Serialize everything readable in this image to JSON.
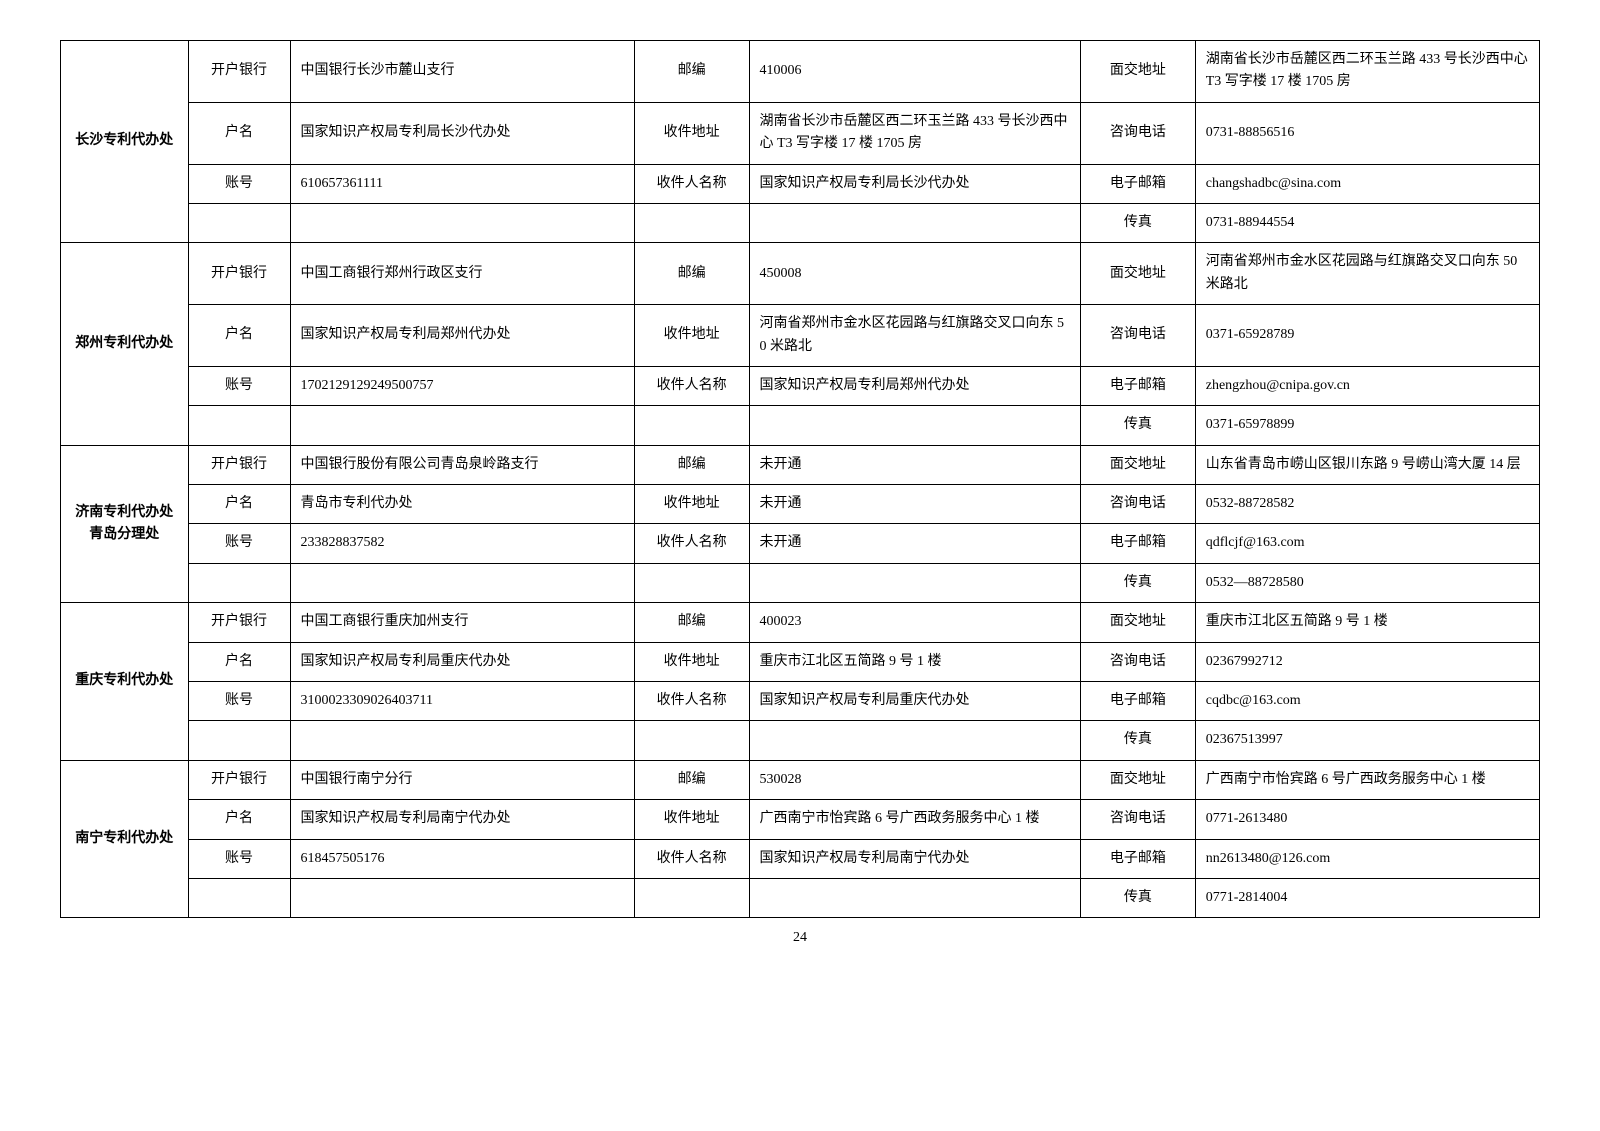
{
  "page_number": "24",
  "labels": {
    "bank": "开户银行",
    "accountName": "户名",
    "accountNo": "账号",
    "postcode": "邮编",
    "recvAddr": "收件地址",
    "recvName": "收件人名称",
    "visitAddr": "面交地址",
    "phone": "咨询电话",
    "email": "电子邮箱",
    "fax": "传真"
  },
  "offices": [
    {
      "name": "长沙专利代办处",
      "bank": "中国银行长沙市麓山支行",
      "postcode": "410006",
      "visitAddr": "湖南省长沙市岳麓区西二环玉兰路 433 号长沙西中心 T3 写字楼 17 楼 1705 房",
      "accountName": "国家知识产权局专利局长沙代办处",
      "recvAddr": "湖南省长沙市岳麓区西二环玉兰路 433 号长沙西中心 T3 写字楼 17 楼 1705 房",
      "phone": "0731-88856516",
      "accountNo": "610657361111",
      "recvName": "国家知识产权局专利局长沙代办处",
      "email": "changshadbc@sina.com",
      "fax": "0731-88944554"
    },
    {
      "name": "郑州专利代办处",
      "bank": "中国工商银行郑州行政区支行",
      "postcode": "450008",
      "visitAddr": "河南省郑州市金水区花园路与红旗路交叉口向东 50 米路北",
      "accountName": "国家知识产权局专利局郑州代办处",
      "recvAddr": "河南省郑州市金水区花园路与红旗路交叉口向东 50 米路北",
      "phone": "0371-65928789",
      "accountNo": "1702129129249500757",
      "recvName": "国家知识产权局专利局郑州代办处",
      "email": "zhengzhou@cnipa.gov.cn",
      "fax": "0371-65978899"
    },
    {
      "name": "济南专利代办处青岛分理处",
      "bank": "中国银行股份有限公司青岛泉岭路支行",
      "postcode": "未开通",
      "visitAddr": "山东省青岛市崂山区银川东路 9 号崂山湾大厦 14 层",
      "accountName": "青岛市专利代办处",
      "recvAddr": "未开通",
      "phone": "0532-88728582",
      "accountNo": "233828837582",
      "recvName": "未开通",
      "email": "qdflcjf@163.com",
      "fax": "0532—88728580"
    },
    {
      "name": "重庆专利代办处",
      "bank": "中国工商银行重庆加州支行",
      "postcode": "400023",
      "visitAddr": "重庆市江北区五简路 9 号 1 楼",
      "accountName": "国家知识产权局专利局重庆代办处",
      "recvAddr": "重庆市江北区五简路 9 号 1 楼",
      "phone": "02367992712",
      "accountNo": "3100023309026403711",
      "recvName": "国家知识产权局专利局重庆代办处",
      "email": "cqdbc@163.com",
      "fax": "02367513997"
    },
    {
      "name": "南宁专利代办处",
      "bank": "中国银行南宁分行",
      "postcode": "530028",
      "visitAddr": "广西南宁市怡宾路 6 号广西政务服务中心 1 楼",
      "accountName": "国家知识产权局专利局南宁代办处",
      "recvAddr": "广西南宁市怡宾路 6 号广西政务服务中心 1 楼",
      "phone": "0771-2613480",
      "accountNo": "618457505176",
      "recvName": "国家知识产权局专利局南宁代办处",
      "email": "nn2613480@126.com",
      "fax": "0771-2814004"
    }
  ]
}
